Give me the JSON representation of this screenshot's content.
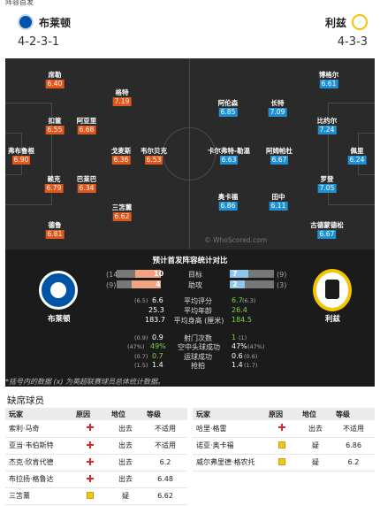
{
  "top_strip": {
    "text": "阵容首发"
  },
  "home": {
    "name": "布莱顿",
    "formation": "4-2-3-1"
  },
  "away": {
    "name": "利兹",
    "formation": "4-3-3"
  },
  "home_players": [
    {
      "name": "席勒",
      "rating": "6.40"
    },
    {
      "name": "格特",
      "rating": "7.19"
    },
    {
      "name": "扣筐",
      "rating": "6.55"
    },
    {
      "name": "阿亚里",
      "rating": "6.68"
    },
    {
      "name": "弗布鲁根",
      "rating": "6.90"
    },
    {
      "name": "戈麦斯",
      "rating": "6.36"
    },
    {
      "name": "韦尔贝克",
      "rating": "6.53"
    },
    {
      "name": "赖克",
      "rating": "6.79"
    },
    {
      "name": "巴莱巴",
      "rating": "6.34"
    },
    {
      "name": "三笘薰",
      "rating": "6.62"
    },
    {
      "name": "德鲁",
      "rating": "6.81"
    }
  ],
  "away_players": [
    {
      "name": "博格尔",
      "rating": "6.61"
    },
    {
      "name": "阿伦森",
      "rating": "6.85"
    },
    {
      "name": "长特",
      "rating": "7.09"
    },
    {
      "name": "比约尔",
      "rating": "7.24"
    },
    {
      "name": "卡尔弗特-勒温",
      "rating": "6.63"
    },
    {
      "name": "阿姆帕杜",
      "rating": "6.67"
    },
    {
      "name": "佩里",
      "rating": "6.24"
    },
    {
      "name": "罗登",
      "rating": "7.05"
    },
    {
      "name": "奥卡福",
      "rating": "6.86"
    },
    {
      "name": "田中",
      "rating": "6.11"
    },
    {
      "name": "古德蒙德松",
      "rating": "6.67"
    }
  ],
  "watermark": "© WhoScored.com",
  "stats": {
    "title": "预计首发阵容统计对比",
    "home_label": "布莱顿",
    "away_label": "利兹",
    "rows": [
      {
        "label": "目标",
        "home": "10",
        "home_note": "(14)",
        "away": "7",
        "away_note": "(9)",
        "home_frac": 0.59,
        "away_frac": 0.41
      },
      {
        "label": "助攻",
        "home": "4",
        "home_note": "(9)",
        "away": "2",
        "away_note": "(3)",
        "home_frac": 0.67,
        "away_frac": 0.33
      },
      {
        "label": "平均评分",
        "home": "6.6",
        "home_note": "(6.5)",
        "away": "6.7",
        "away_note": "(6.3)"
      },
      {
        "label": "平均年龄",
        "home": "25.3",
        "home_note": "",
        "away": "26.4",
        "away_note": ""
      },
      {
        "label": "平均身高 (厘米)",
        "home": "183.7",
        "home_note": "",
        "away": "184.5",
        "away_note": ""
      },
      {
        "label": "射门次数",
        "home": "0.9",
        "home_note": "(0.9)",
        "away": "1",
        "away_note": "(1)"
      },
      {
        "label": "空中头球成功",
        "home": "49%",
        "home_note": "(47%)",
        "away": "47%",
        "away_note": "(47%)"
      },
      {
        "label": "运球成功",
        "home": "0.7",
        "home_note": "(0.7)",
        "away": "0.6",
        "away_note": "(0.6)"
      },
      {
        "label": "抢拍",
        "home": "1.4",
        "home_note": "(1.5)",
        "away": "1.4",
        "away_note": "(1.7)"
      }
    ],
    "footnote": "*括号内的数据 (x) 为英超联赛球员总体统计数据。"
  },
  "missing": {
    "title": "缺席球员",
    "headers": [
      "玩家",
      "原因",
      "地位",
      "等级"
    ],
    "left": [
      {
        "player": "索利·马奇",
        "reason": "injury",
        "status": "出去",
        "rating": "不适用"
      },
      {
        "player": "亚当·韦伯斯特",
        "reason": "injury",
        "status": "出去",
        "rating": "不适用"
      },
      {
        "player": "杰克·欣肯代德",
        "reason": "injury",
        "status": "出去",
        "rating": "6.2"
      },
      {
        "player": "布拉扬·格鲁达",
        "reason": "injury",
        "status": "出去",
        "rating": "6.48"
      },
      {
        "player": "三笘薰",
        "reason": "doubt",
        "status": "疑",
        "rating": "6.62"
      }
    ],
    "right": [
      {
        "player": "哈里·格雷",
        "reason": "injury",
        "status": "出去",
        "rating": "不适用"
      },
      {
        "player": "诺亚·奥卡福",
        "reason": "doubt",
        "status": "疑",
        "rating": "6.86"
      },
      {
        "player": "威尔弗里德·格农托",
        "reason": "doubt",
        "status": "疑",
        "rating": "6.2"
      }
    ]
  },
  "colors": {
    "rating_home": "#e0561b",
    "rating_away": "#1f8fd6",
    "pitch": "#2a2a2a",
    "home_bar": "#f2a37f",
    "away_bar": "#8fc6ea"
  }
}
